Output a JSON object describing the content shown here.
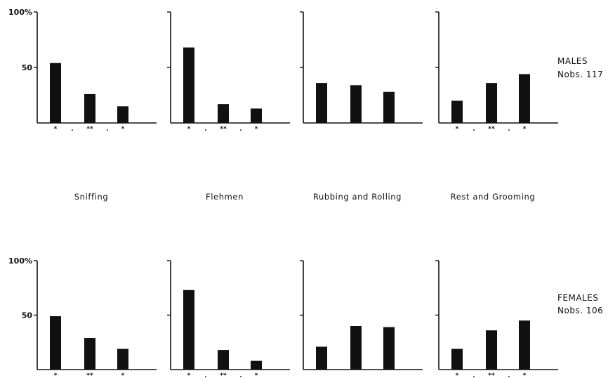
{
  "figure": {
    "background": "#ffffff",
    "bar_color": "#111111"
  },
  "chart_data": [
    {
      "type": "bar",
      "group": "males",
      "panel": "sniffing",
      "title": "Sniffing",
      "ytick_labels": [
        "100%",
        "50"
      ],
      "ylim": [
        0,
        100
      ],
      "ytick_values": [
        100,
        50
      ],
      "values": [
        54,
        26,
        15
      ],
      "marks": [
        "*",
        ".",
        "**",
        ".",
        "*"
      ]
    },
    {
      "type": "bar",
      "group": "males",
      "panel": "flehmen",
      "title": "Flehmen",
      "ytick_labels": [
        "",
        ""
      ],
      "ylim": [
        0,
        100
      ],
      "ytick_values": [
        100,
        50
      ],
      "values": [
        68,
        17,
        13
      ],
      "marks": [
        "*",
        ".",
        "**",
        ".",
        "*"
      ]
    },
    {
      "type": "bar",
      "group": "males",
      "panel": "rubbing-rolling",
      "title": "Rubbing and Rolling",
      "ytick_labels": [
        "",
        ""
      ],
      "ylim": [
        0,
        100
      ],
      "ytick_values": [
        100,
        50
      ],
      "values": [
        36,
        34,
        28
      ],
      "marks": []
    },
    {
      "type": "bar",
      "group": "males",
      "panel": "rest-grooming",
      "title": "Rest and Grooming",
      "ytick_labels": [
        "",
        ""
      ],
      "ylim": [
        0,
        100
      ],
      "ytick_values": [
        100,
        50
      ],
      "values": [
        20,
        36,
        44
      ],
      "marks": [
        "*",
        ".",
        "**",
        ".",
        "*"
      ]
    },
    {
      "type": "bar",
      "group": "females",
      "panel": "sniffing",
      "title": "",
      "ytick_labels": [
        "100%",
        "50"
      ],
      "ylim": [
        0,
        100
      ],
      "ytick_values": [
        100,
        50
      ],
      "values": [
        49,
        29,
        19
      ],
      "marks": [
        "*",
        "**",
        "*"
      ]
    },
    {
      "type": "bar",
      "group": "females",
      "panel": "flehmen",
      "title": "",
      "ytick_labels": [
        "",
        ""
      ],
      "ylim": [
        0,
        100
      ],
      "ytick_values": [
        100,
        50
      ],
      "values": [
        73,
        18,
        8
      ],
      "marks": [
        "*",
        ".",
        "**",
        ".",
        "*"
      ]
    },
    {
      "type": "bar",
      "group": "females",
      "panel": "rubbing-rolling",
      "title": "",
      "ytick_labels": [
        "",
        ""
      ],
      "ylim": [
        0,
        100
      ],
      "ytick_values": [
        100,
        50
      ],
      "values": [
        21,
        40,
        39
      ],
      "marks": []
    },
    {
      "type": "bar",
      "group": "females",
      "panel": "rest-grooming",
      "title": "",
      "ytick_labels": [
        "",
        ""
      ],
      "ylim": [
        0,
        100
      ],
      "ytick_values": [
        100,
        50
      ],
      "values": [
        19,
        36,
        45
      ],
      "marks": [
        "*",
        ".",
        "**",
        ".",
        "*"
      ]
    }
  ],
  "group_labels": {
    "males": {
      "title": "MALES",
      "nobs": "Nobs. 117"
    },
    "females": {
      "title": "FEMALES",
      "nobs": "Nobs. 106"
    }
  }
}
